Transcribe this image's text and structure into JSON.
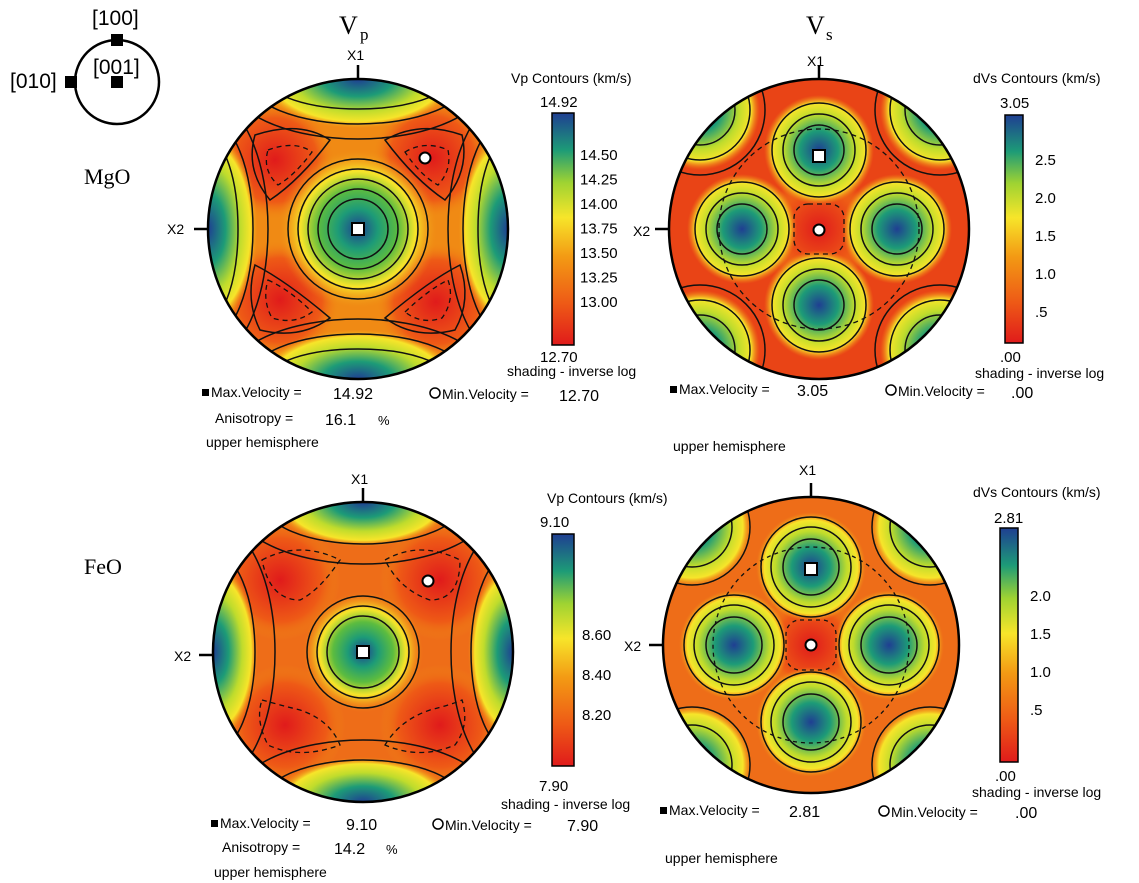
{
  "legend_key": {
    "labels": [
      "[100]",
      "[010]",
      "[001]"
    ]
  },
  "column_titles": {
    "vp": {
      "main": "V",
      "sub": "p"
    },
    "vs": {
      "main": "V",
      "sub": "s"
    }
  },
  "axis_labels": {
    "x1": "X1",
    "x2": "X2"
  },
  "colors": {
    "scale": [
      "#e01b1b",
      "#ee5a16",
      "#f08a14",
      "#f6b81a",
      "#f7e52a",
      "#bfdc2c",
      "#5cbc3f",
      "#1d9b77",
      "#1d6b9b",
      "#1f3f92"
    ],
    "contour": "#111111"
  },
  "panels": [
    {
      "id": "mgo-vp",
      "row_label": "MgO",
      "colorbar_title": "Vp  Contours (km/s)",
      "colorbar_max": "14.92",
      "colorbar_min": "12.70",
      "colorbar_ticks": [
        "14.50",
        "14.25",
        "14.00",
        "13.75",
        "13.50",
        "13.25",
        "13.00"
      ],
      "shading_note": "shading - inverse log",
      "max_label": "Max.Velocity =",
      "max_value": "14.92",
      "min_label": "Min.Velocity =",
      "min_value": "12.70",
      "anisotropy_label": "Anisotropy =",
      "anisotropy_value": "16.1",
      "anisotropy_unit": "%",
      "hemisphere_note": "upper hemisphere"
    },
    {
      "id": "mgo-vs",
      "colorbar_title": "dVs Contours (km/s)",
      "colorbar_max": "3.05",
      "colorbar_min": ".00",
      "colorbar_ticks": [
        "2.5",
        "2.0",
        "1.5",
        "1.0",
        ".5"
      ],
      "shading_note": "shading - inverse log",
      "max_label": "Max.Velocity =",
      "max_value": "3.05",
      "min_label": "Min.Velocity =",
      "min_value": ".00",
      "hemisphere_note": "upper hemisphere"
    },
    {
      "id": "feo-vp",
      "row_label": "FeO",
      "colorbar_title": "Vp  Contours (km/s)",
      "colorbar_max": "9.10",
      "colorbar_min": "7.90",
      "colorbar_ticks": [
        "8.60",
        "8.40",
        "8.20"
      ],
      "shading_note": "shading - inverse log",
      "max_label": "Max.Velocity =",
      "max_value": "9.10",
      "min_label": "Min.Velocity =",
      "min_value": "7.90",
      "anisotropy_label": "Anisotropy =",
      "anisotropy_value": "14.2",
      "anisotropy_unit": "%",
      "hemisphere_note": "upper hemisphere"
    },
    {
      "id": "feo-vs",
      "colorbar_title": "dVs Contours (km/s)",
      "colorbar_max": "2.81",
      "colorbar_min": ".00",
      "colorbar_ticks": [
        "2.0",
        "1.5",
        "1.0",
        ".5"
      ],
      "shading_note": "shading - inverse log",
      "max_label": "Max.Velocity =",
      "max_value": "2.81",
      "min_label": "Min.Velocity =",
      "min_value": ".00",
      "hemisphere_note": "upper hemisphere"
    }
  ]
}
